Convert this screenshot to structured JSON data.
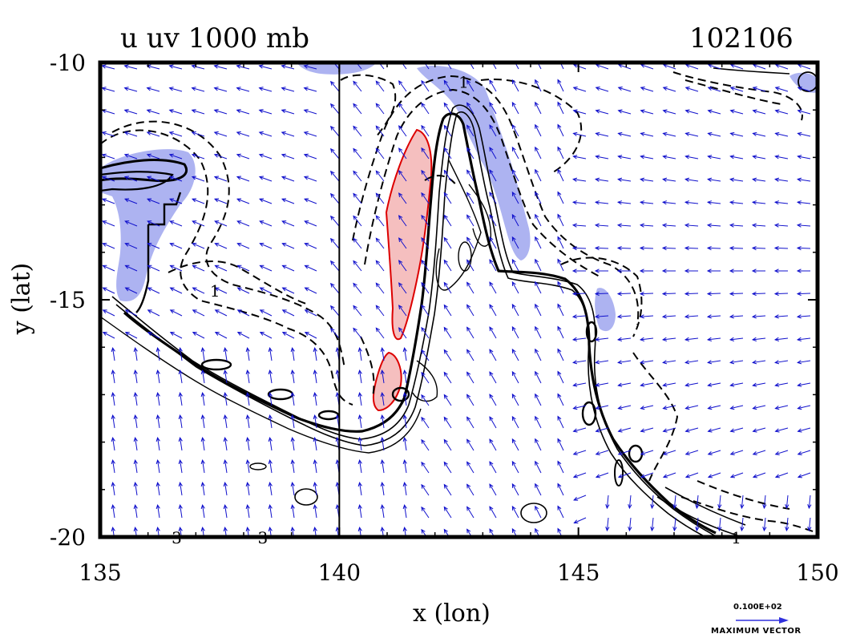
{
  "chart_data": {
    "type": "contour-vector-map",
    "title_left": "u uv 1000 mb",
    "title_right": "102106",
    "xlabel": "x (lon)",
    "ylabel": "y (lat)",
    "xlim": [
      135,
      150
    ],
    "ylim": [
      -20,
      -10
    ],
    "xticks": [
      135,
      140,
      145,
      150
    ],
    "yticks": [
      -10,
      -15,
      -20
    ],
    "xtick_labels": [
      "135",
      "140",
      "145",
      "150"
    ],
    "ytick_labels": [
      "-10",
      "-15",
      "-20"
    ],
    "reference_line_lon": 140,
    "contour_labels": [
      {
        "text": "1",
        "lon": 137.4,
        "lat": -14.8
      },
      {
        "text": "1",
        "lon": 142.6,
        "lat": -10.4
      },
      {
        "text": "1",
        "lon": 148.3,
        "lat": -20.0
      },
      {
        "text": "3",
        "lon": 136.6,
        "lat": -20.0
      },
      {
        "text": "3",
        "lon": 138.4,
        "lat": -20.0
      }
    ],
    "vector_reference": {
      "value": "0.100E+02",
      "label": "MAXIMUM VECTOR"
    },
    "colors": {
      "vectors": "#1010cc",
      "positive_shade": "#f4b8b8",
      "positive_outline": "#dd0000",
      "negative_shade": "#9fa6ee",
      "contours": "#000000"
    }
  }
}
